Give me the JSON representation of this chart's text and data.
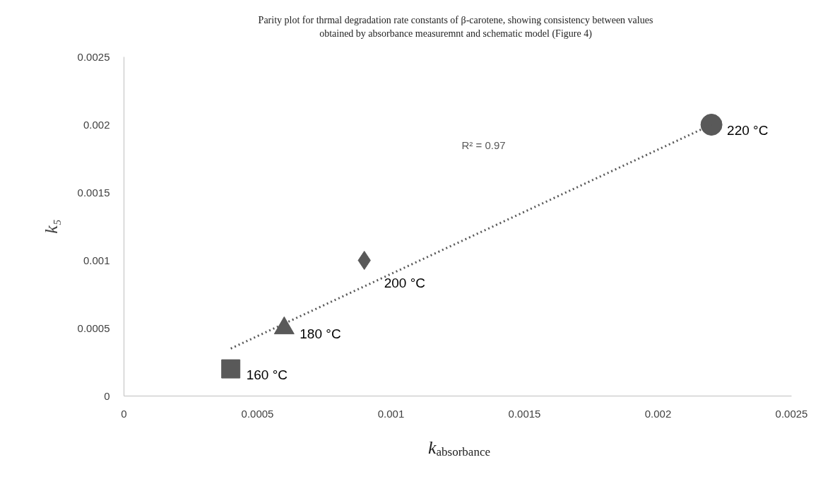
{
  "chart_data": {
    "type": "scatter",
    "title": "Parity plot for thrmal degradation rate constants of β-carotene, showing consistency between values obtained by absorbance measuremnt and schematic model (Figure 4)",
    "xlabel": "k$_{absorbance}$",
    "ylabel": "k₅",
    "xlim": [
      0,
      0.0025
    ],
    "xticks": [
      0,
      0.0005,
      0.001,
      0.0015,
      0.002,
      0.0025
    ],
    "ylim": [
      0,
      0.0025
    ],
    "yticks": [
      0,
      0.0005,
      0.001,
      0.0015,
      0.002,
      0.0025
    ],
    "grid": false,
    "series": [
      {
        "name": "160 °C",
        "color": "#595959",
        "marker": "square",
        "x": [
          0.0004
        ],
        "values": [
          0.0002
        ]
      },
      {
        "name": "180 °C",
        "color": "#595959",
        "marker": "triangle",
        "x": [
          0.0006
        ],
        "values": [
          0.0005
        ]
      },
      {
        "name": "200 °C",
        "color": "#595959",
        "marker": "diamond",
        "x": [
          0.0009
        ],
        "values": [
          0.001
        ]
      },
      {
        "name": "220 °C",
        "color": "#595959",
        "marker": "circle",
        "x": [
          0.0022
        ],
        "values": [
          0.002
        ]
      },
      {
        "type": "line",
        "line_style": "dotted",
        "color": "#595959",
        "x": [
          0.0004,
          0.0022
        ],
        "values": [
          0.00035,
          0.002
        ]
      }
    ],
    "annotations": [
      "R² = 0.97"
    ]
  }
}
